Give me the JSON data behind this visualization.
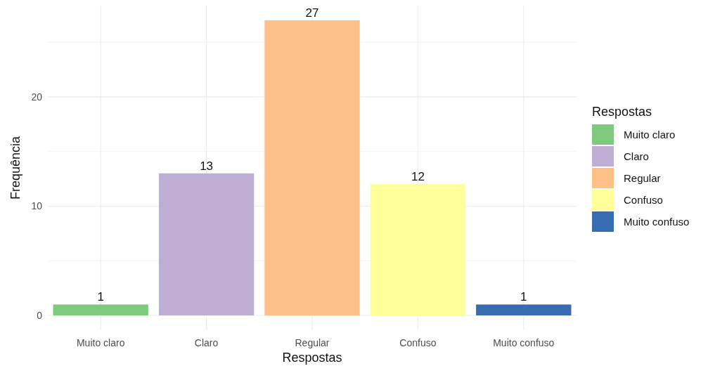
{
  "chart_data": {
    "type": "bar",
    "xlabel": "Respostas",
    "ylabel": "Frequência",
    "legend_title": "Respostas",
    "categories": [
      "Muito claro",
      "Claro",
      "Regular",
      "Confuso",
      "Muito confuso"
    ],
    "stacked": true,
    "series": [
      {
        "name": "Muito claro",
        "color": "#7fc97f",
        "values": [
          1,
          null,
          null,
          null,
          null
        ]
      },
      {
        "name": "Claro",
        "color": "#beaed4",
        "values": [
          null,
          13,
          null,
          null,
          null
        ]
      },
      {
        "name": "Regular",
        "color": "#fdc086",
        "values": [
          null,
          null,
          27,
          null,
          null
        ]
      },
      {
        "name": "Confuso",
        "color": "#ffff99",
        "values": [
          null,
          null,
          null,
          12,
          null
        ]
      },
      {
        "name": "Muito confuso",
        "color": "#386cb0",
        "values": [
          null,
          null,
          null,
          null,
          1
        ]
      }
    ],
    "ylim": [
      -1.35,
      28.35
    ],
    "yticks": [
      0,
      {
        "value": 5,
        "label": null
      },
      10,
      {
        "value": 15,
        "label": null
      },
      20,
      {
        "value": 25,
        "label": null
      }
    ],
    "grid": true,
    "legend": "right",
    "data_labels": true
  }
}
